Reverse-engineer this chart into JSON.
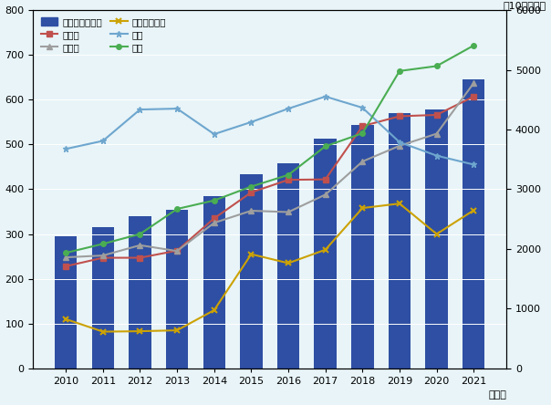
{
  "years": [
    2010,
    2011,
    2012,
    2013,
    2014,
    2015,
    2016,
    2017,
    2018,
    2019,
    2020,
    2021
  ],
  "sekai": [
    2208,
    2370,
    2544,
    2655,
    2882,
    3248,
    3439,
    3847,
    4069,
    4272,
    4340,
    4840
  ],
  "canada": [
    228,
    247,
    247,
    263,
    335,
    393,
    421,
    422,
    541,
    563,
    566,
    607
  ],
  "germany": [
    248,
    252,
    275,
    262,
    325,
    352,
    349,
    388,
    462,
    497,
    524,
    637
  ],
  "ireland": [
    110,
    82,
    83,
    85,
    130,
    255,
    235,
    265,
    358,
    368,
    300,
    353
  ],
  "uk": [
    490,
    508,
    578,
    580,
    523,
    550,
    580,
    607,
    582,
    505,
    475,
    455
  ],
  "japan": [
    258,
    278,
    300,
    356,
    375,
    406,
    432,
    496,
    525,
    664,
    675,
    721
  ],
  "title_right": "（10億ドル）",
  "xlabel": "（年）",
  "bar_color": "#2E4FA3",
  "canada_color": "#C0504D",
  "germany_color": "#9E9E9E",
  "ireland_color": "#CCA205",
  "uk_color": "#6EA6CE",
  "japan_color": "#4AAD52",
  "left_ylim": [
    0,
    800
  ],
  "right_ylim": [
    0,
    6000
  ],
  "left_yticks": [
    0,
    100,
    200,
    300,
    400,
    500,
    600,
    700,
    800
  ],
  "right_yticks": [
    0,
    1000,
    2000,
    3000,
    4000,
    5000,
    6000
  ],
  "bg_color": "#E8F4F8"
}
